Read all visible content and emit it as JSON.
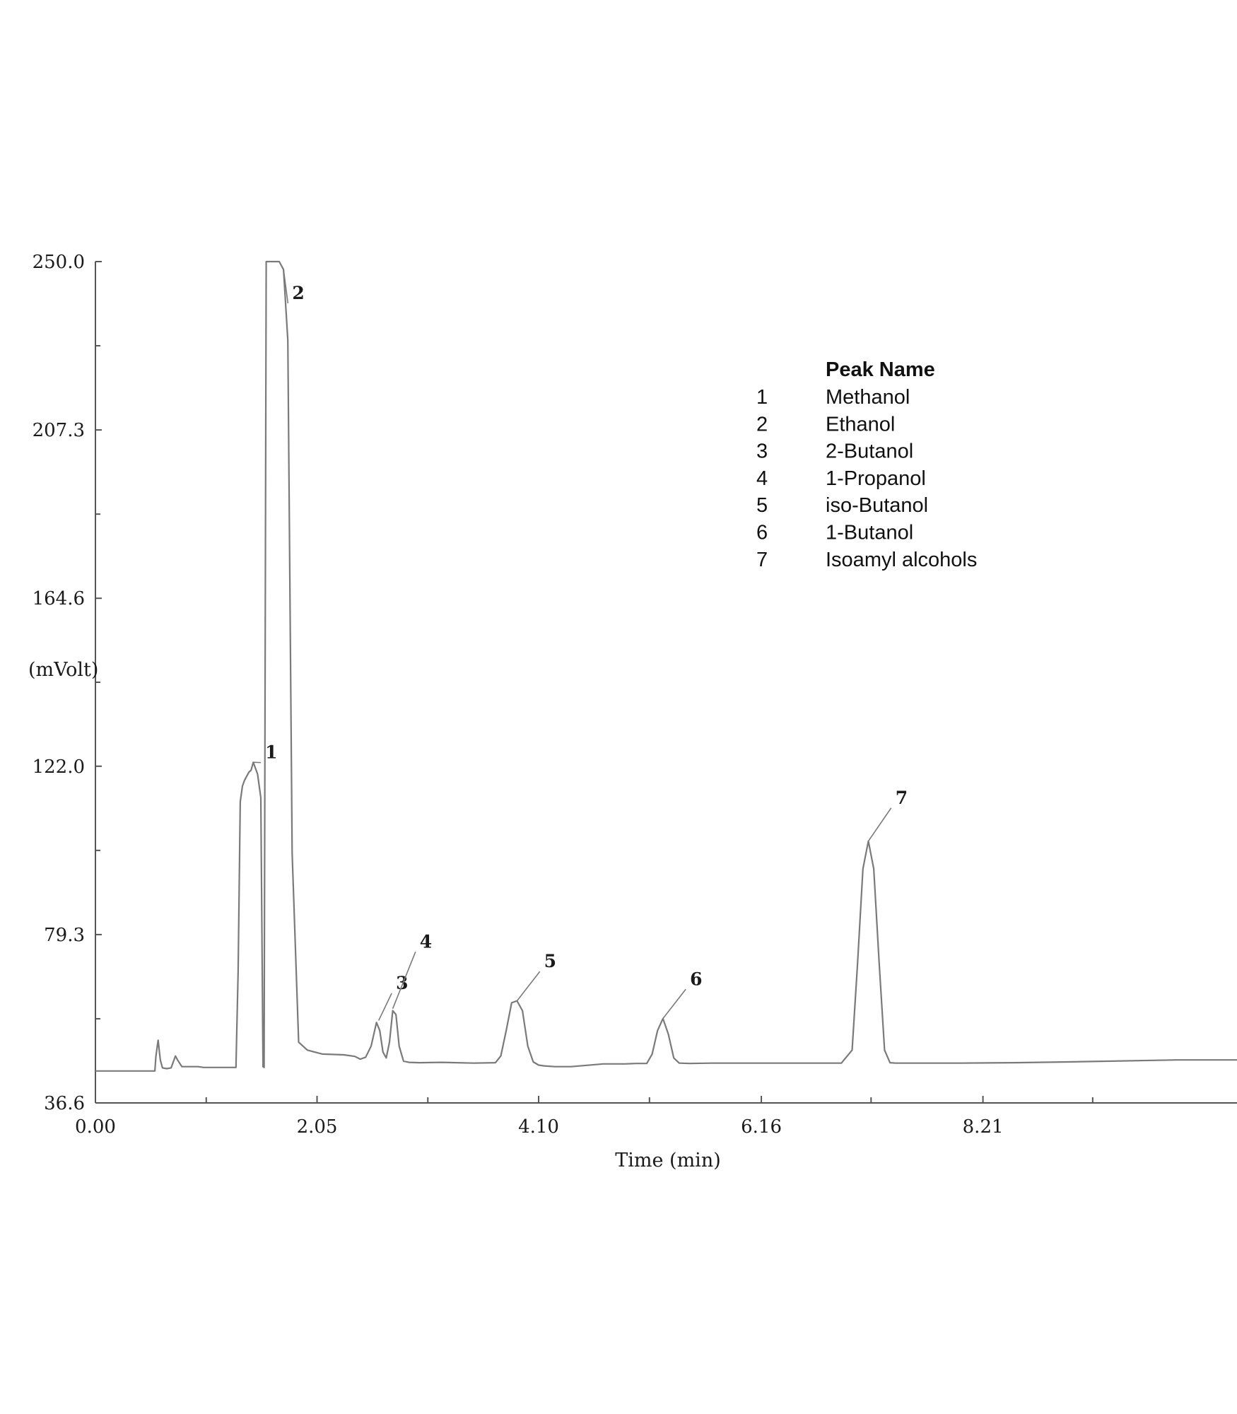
{
  "chart_data": {
    "type": "line",
    "xlabel": "Time (min)",
    "ylabel": "(mVolt)",
    "xlim": [
      0,
      10.56
    ],
    "ylim": [
      36.6,
      250.0
    ],
    "x_ticks": [
      "0.00",
      "2.05",
      "4.10",
      "6.16",
      "8.21"
    ],
    "x_tick_values": [
      0.0,
      2.05,
      4.1,
      6.16,
      8.21
    ],
    "y_ticks": [
      "250.0",
      "207.3",
      "164.6",
      "122.0",
      "79.3",
      "36.6"
    ],
    "y_tick_values": [
      250.0,
      207.3,
      164.6,
      122.0,
      79.3,
      36.6
    ],
    "series": [
      {
        "x": [
          0.0,
          0.55,
          0.56,
          0.58,
          0.6,
          0.62,
          0.66,
          0.7,
          0.74,
          0.76,
          0.8,
          0.85,
          0.95,
          1.0,
          1.1,
          1.3,
          1.32,
          1.34,
          1.36,
          1.38,
          1.42,
          1.44,
          1.46,
          1.5,
          1.53,
          1.55,
          1.56,
          1.58,
          1.7,
          1.74,
          1.78,
          1.82,
          1.88,
          1.96,
          2.1,
          2.3,
          2.4,
          2.45,
          2.5,
          2.55,
          2.6,
          2.63,
          2.66,
          2.69,
          2.72,
          2.75,
          2.78,
          2.81,
          2.85,
          2.9,
          3.0,
          3.2,
          3.5,
          3.7,
          3.75,
          3.8,
          3.85,
          3.9,
          3.95,
          4.0,
          4.05,
          4.1,
          4.15,
          4.25,
          4.4,
          4.7,
          4.9,
          5.0,
          5.1,
          5.15,
          5.2,
          5.25,
          5.3,
          5.35,
          5.4,
          5.5,
          5.7,
          6.0,
          6.5,
          6.9,
          7.0,
          7.05,
          7.1,
          7.15,
          7.2,
          7.25,
          7.3,
          7.35,
          7.4,
          7.5,
          7.7,
          8.0,
          8.5,
          9.0,
          10.0,
          10.56
        ],
        "values": [
          44.7,
          44.7,
          48.5,
          52.5,
          47.5,
          45.5,
          45.3,
          45.5,
          48.5,
          47.5,
          45.8,
          45.8,
          45.8,
          45.6,
          45.6,
          45.6,
          70.0,
          113.0,
          117.0,
          118.5,
          120.5,
          121.0,
          123.0,
          120.0,
          114.0,
          45.8,
          45.6,
          250.0,
          250.0,
          248.0,
          230.0,
          100.0,
          52.0,
          50.0,
          49.0,
          48.8,
          48.4,
          47.7,
          48.2,
          51.0,
          57.0,
          55.0,
          49.5,
          48.0,
          52.0,
          60.0,
          59.0,
          51.0,
          47.2,
          46.9,
          46.8,
          46.9,
          46.7,
          46.8,
          48.5,
          55.0,
          62.0,
          62.5,
          60.0,
          51.0,
          47.0,
          46.2,
          46.0,
          45.8,
          45.8,
          46.5,
          46.5,
          46.6,
          46.6,
          49.0,
          55.0,
          58.0,
          54.0,
          48.0,
          46.7,
          46.6,
          46.7,
          46.7,
          46.7,
          46.7,
          50.0,
          72.0,
          96.0,
          103.0,
          96.0,
          72.0,
          50.0,
          46.8,
          46.7,
          46.7,
          46.7,
          46.7,
          46.8,
          47.0,
          47.5,
          47.5
        ]
      }
    ],
    "peaks": [
      {
        "label": "1",
        "x": 1.46,
        "y": 123.0,
        "label_x": 1.57,
        "label_y": 124.0
      },
      {
        "label": "2",
        "x": 1.74,
        "y": 248.0,
        "label_x": 1.82,
        "label_y": 240.5
      },
      {
        "label": "3",
        "x": 2.62,
        "y": 57.5,
        "label_x": 2.78,
        "label_y": 65.5
      },
      {
        "label": "4",
        "x": 2.75,
        "y": 60.5,
        "label_x": 3.0,
        "label_y": 76.0
      },
      {
        "label": "5",
        "x": 3.9,
        "y": 62.5,
        "label_x": 4.15,
        "label_y": 71.0
      },
      {
        "label": "6",
        "x": 5.25,
        "y": 58.0,
        "label_x": 5.5,
        "label_y": 66.5
      },
      {
        "label": "7",
        "x": 7.15,
        "y": 103.0,
        "label_x": 7.4,
        "label_y": 112.5
      }
    ],
    "legend": {
      "placement": "top-right",
      "header": "Peak Name",
      "entries": [
        {
          "number": "1",
          "name": "Methanol"
        },
        {
          "number": "2",
          "name": "Ethanol"
        },
        {
          "number": "3",
          "name": "2-Butanol"
        },
        {
          "number": "4",
          "name": "1-Propanol"
        },
        {
          "number": "5",
          "name": "iso-Butanol"
        },
        {
          "number": "6",
          "name": "1-Butanol"
        },
        {
          "number": "7",
          "name": "Isoamyl alcohols"
        }
      ]
    },
    "grid": false,
    "colors": {
      "trace": "#7a7a7a",
      "axis": "#555555",
      "text": "#1a1a1a"
    }
  }
}
